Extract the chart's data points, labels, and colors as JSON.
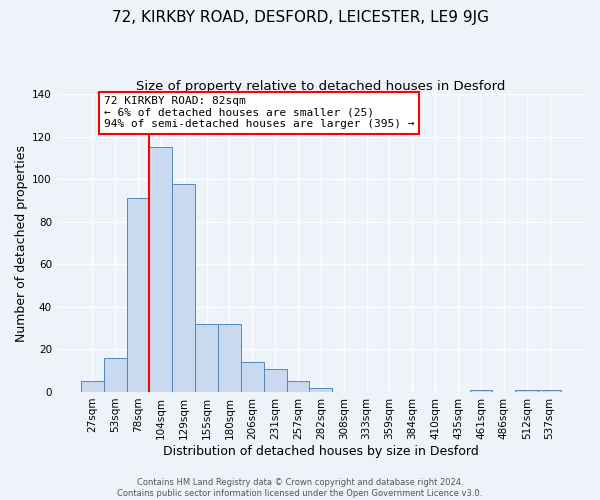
{
  "title": "72, KIRKBY ROAD, DESFORD, LEICESTER, LE9 9JG",
  "subtitle": "Size of property relative to detached houses in Desford",
  "xlabel": "Distribution of detached houses by size in Desford",
  "ylabel": "Number of detached properties",
  "bar_labels": [
    "27sqm",
    "53sqm",
    "78sqm",
    "104sqm",
    "129sqm",
    "155sqm",
    "180sqm",
    "206sqm",
    "231sqm",
    "257sqm",
    "282sqm",
    "308sqm",
    "333sqm",
    "359sqm",
    "384sqm",
    "410sqm",
    "435sqm",
    "461sqm",
    "486sqm",
    "512sqm",
    "537sqm"
  ],
  "bar_values": [
    5,
    16,
    91,
    115,
    98,
    32,
    32,
    14,
    11,
    5,
    2,
    0,
    0,
    0,
    0,
    0,
    0,
    1,
    0,
    1,
    1
  ],
  "bar_color": "#c9d9f0",
  "bar_edge_color": "#5588bb",
  "vline_color": "red",
  "vline_pos": 2.5,
  "ylim": [
    0,
    140
  ],
  "yticks": [
    0,
    20,
    40,
    60,
    80,
    100,
    120,
    140
  ],
  "annotation_title": "72 KIRKBY ROAD: 82sqm",
  "annotation_line1": "← 6% of detached houses are smaller (25)",
  "annotation_line2": "94% of semi-detached houses are larger (395) →",
  "annotation_box_color": "white",
  "annotation_box_edge": "red",
  "footer1": "Contains HM Land Registry data © Crown copyright and database right 2024.",
  "footer2": "Contains public sector information licensed under the Open Government Licence v3.0.",
  "background_color": "#eef2f9",
  "grid_color": "#ffffff",
  "title_fontsize": 11,
  "subtitle_fontsize": 9.5,
  "ylabel_fontsize": 9,
  "xlabel_fontsize": 9,
  "tick_fontsize": 7.5,
  "footer_fontsize": 6,
  "annot_fontsize": 8
}
